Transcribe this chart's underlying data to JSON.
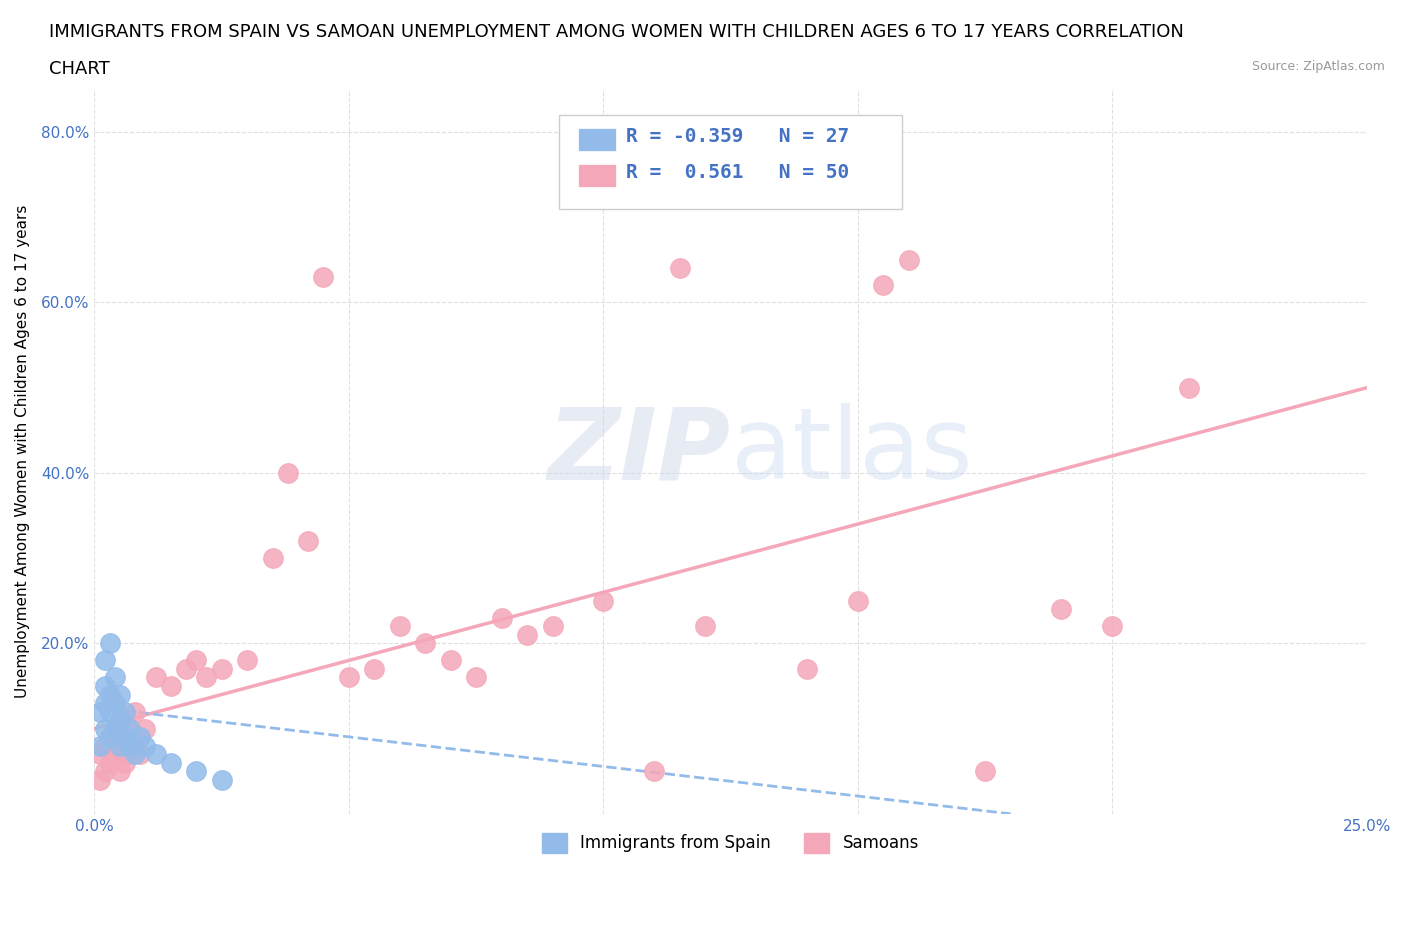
{
  "title_line1": "IMMIGRANTS FROM SPAIN VS SAMOAN UNEMPLOYMENT AMONG WOMEN WITH CHILDREN AGES 6 TO 17 YEARS CORRELATION",
  "title_line2": "CHART",
  "source": "Source: ZipAtlas.com",
  "ylabel": "Unemployment Among Women with Children Ages 6 to 17 years",
  "xlim": [
    0.0,
    0.25
  ],
  "ylim": [
    0.0,
    0.85
  ],
  "xticks": [
    0.0,
    0.05,
    0.1,
    0.15,
    0.2,
    0.25
  ],
  "xticklabels": [
    "0.0%",
    "",
    "",
    "",
    "",
    "25.0%"
  ],
  "yticks": [
    0.0,
    0.2,
    0.4,
    0.6,
    0.8
  ],
  "yticklabels": [
    "",
    "20.0%",
    "40.0%",
    "60.0%",
    "80.0%"
  ],
  "blue_color": "#92BBEA",
  "pink_color": "#F4A7B9",
  "watermark": "ZIPatlas",
  "blue_scatter_x": [
    0.001,
    0.001,
    0.002,
    0.002,
    0.002,
    0.002,
    0.003,
    0.003,
    0.003,
    0.003,
    0.004,
    0.004,
    0.004,
    0.005,
    0.005,
    0.005,
    0.006,
    0.006,
    0.007,
    0.007,
    0.008,
    0.009,
    0.01,
    0.012,
    0.015,
    0.02,
    0.025
  ],
  "blue_scatter_y": [
    0.08,
    0.12,
    0.1,
    0.13,
    0.15,
    0.18,
    0.09,
    0.12,
    0.14,
    0.2,
    0.1,
    0.13,
    0.16,
    0.08,
    0.11,
    0.14,
    0.09,
    0.12,
    0.08,
    0.1,
    0.07,
    0.09,
    0.08,
    0.07,
    0.06,
    0.05,
    0.04
  ],
  "pink_scatter_x": [
    0.001,
    0.001,
    0.002,
    0.002,
    0.003,
    0.003,
    0.004,
    0.004,
    0.005,
    0.005,
    0.006,
    0.006,
    0.007,
    0.007,
    0.008,
    0.008,
    0.009,
    0.01,
    0.012,
    0.015,
    0.018,
    0.02,
    0.022,
    0.025,
    0.03,
    0.035,
    0.038,
    0.042,
    0.045,
    0.05,
    0.055,
    0.06,
    0.065,
    0.07,
    0.075,
    0.08,
    0.085,
    0.09,
    0.1,
    0.11,
    0.115,
    0.12,
    0.14,
    0.15,
    0.155,
    0.16,
    0.175,
    0.19,
    0.2,
    0.215
  ],
  "pink_scatter_y": [
    0.04,
    0.07,
    0.05,
    0.08,
    0.06,
    0.09,
    0.07,
    0.1,
    0.05,
    0.08,
    0.06,
    0.09,
    0.07,
    0.1,
    0.08,
    0.12,
    0.07,
    0.1,
    0.16,
    0.15,
    0.17,
    0.18,
    0.16,
    0.17,
    0.18,
    0.3,
    0.4,
    0.32,
    0.63,
    0.16,
    0.17,
    0.22,
    0.2,
    0.18,
    0.16,
    0.23,
    0.21,
    0.22,
    0.25,
    0.05,
    0.64,
    0.22,
    0.17,
    0.25,
    0.62,
    0.65,
    0.05,
    0.24,
    0.22,
    0.5
  ],
  "pink_line_x0": 0.0,
  "pink_line_y0": 0.1,
  "pink_line_x1": 0.25,
  "pink_line_y1": 0.5,
  "blue_line_x0": 0.0,
  "blue_line_y0": 0.125,
  "blue_line_x1": 0.18,
  "blue_line_y1": 0.0,
  "grid_color": "#E0E0E0",
  "title_fontsize": 13,
  "axis_label_fontsize": 11,
  "tick_fontsize": 11,
  "tick_color": "#4472C4",
  "background_color": "#FFFFFF"
}
